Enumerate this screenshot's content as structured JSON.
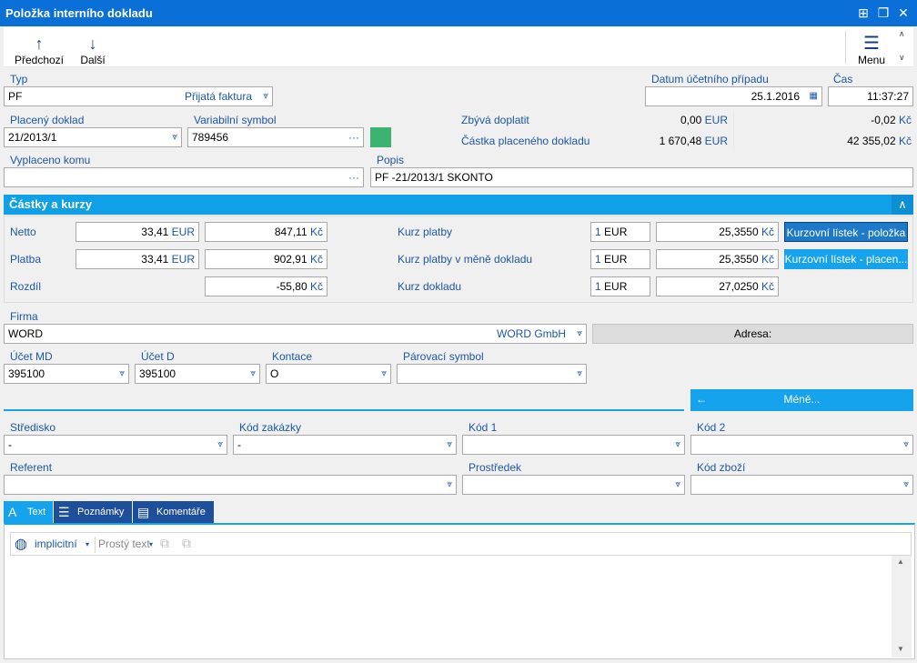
{
  "window": {
    "title": "Položka interního dokladu"
  },
  "toolbar": {
    "prev_label": "Předchozí",
    "next_label": "Další",
    "menu_label": "Menu"
  },
  "header": {
    "typ_label": "Typ",
    "typ_value": "PF",
    "typ_text": "Přijatá faktura",
    "datum_label": "Datum účetního případu",
    "datum_value": "25.1.2016",
    "cas_label": "Čas",
    "cas_value": "11:37:27",
    "placeny_label": "Placený doklad",
    "placeny_value": "21/2013/1",
    "vs_label": "Variabilní symbol",
    "vs_value": "789456",
    "zbyva_label": "Zbývá doplatit",
    "zbyva_eur": "0,00",
    "zbyva_eur_cur": "EUR",
    "zbyva_czk": "-0,02",
    "zbyva_czk_cur": "Kč",
    "castka_label": "Částka placeného dokladu",
    "castka_eur": "1 670,48",
    "castka_eur_cur": "EUR",
    "castka_czk": "42 355,02",
    "castka_czk_cur": "Kč",
    "vyplaceno_label": "Vyplaceno komu",
    "vyplaceno_value": "",
    "popis_label": "Popis",
    "popis_value": "PF -21/2013/1 SKONTO",
    "status_color": "#3cb371"
  },
  "castky": {
    "title": "Částky a kurzy",
    "netto_label": "Netto",
    "netto_eur": "33,41",
    "netto_czk": "847,11",
    "platba_label": "Platba",
    "platba_eur": "33,41",
    "platba_czk": "902,91",
    "rozdil_label": "Rozdíl",
    "rozdil_czk": "-55,80",
    "eur": "EUR",
    "czk": "Kč",
    "kurz_platby_label": "Kurz platby",
    "kurz_platby_qty": "1",
    "kurz_platby_cur": "EUR",
    "kurz_platby_value": "25,3550",
    "kurz_mena_label": "Kurz platby v měně dokladu",
    "kurz_mena_qty": "1",
    "kurz_mena_cur": "EUR",
    "kurz_mena_value": "25,3550",
    "kurz_dokladu_label": "Kurz dokladu",
    "kurz_dokladu_qty": "1",
    "kurz_dokladu_cur": "EUR",
    "kurz_dokladu_value": "27,0250",
    "btn_polozka": "Kurzovní lístek - položka",
    "btn_placeny": "Kurzovní lístek - placen..."
  },
  "firma": {
    "label": "Firma",
    "value": "WORD",
    "name": "WORD GmbH",
    "adresa_label": "Adresa:"
  },
  "ucty": {
    "md_label": "Účet MD",
    "md_value": "395100",
    "d_label": "Účet D",
    "d_value": "395100",
    "kontace_label": "Kontace",
    "kontace_value": "O",
    "parovaci_label": "Párovací symbol",
    "parovaci_value": "",
    "mene_label": "Méně..."
  },
  "detail": {
    "stredisko_label": "Středisko",
    "stredisko_value": "-",
    "kod_zakazky_label": "Kód zakázky",
    "kod_zakazky_value": "-",
    "kod1_label": "Kód 1",
    "kod1_value": "",
    "kod2_label": "Kód 2",
    "kod2_value": "",
    "referent_label": "Referent",
    "referent_value": "",
    "prostredek_label": "Prostředek",
    "prostredek_value": "",
    "kod_zbozi_label": "Kód zboží",
    "kod_zbozi_value": ""
  },
  "tabs": [
    {
      "label": "Text",
      "icon": "text-format-icon"
    },
    {
      "label": "Poznámky",
      "icon": "notes-icon"
    },
    {
      "label": "Komentáře",
      "icon": "comments-icon"
    }
  ],
  "editor": {
    "lang_label": "implicitní",
    "format_label": "Prostý text"
  }
}
